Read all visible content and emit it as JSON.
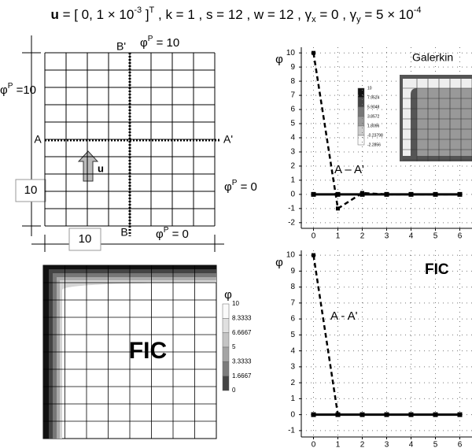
{
  "title": [
    "u",
    " = [ 0, 1 × 10",
    "-3",
    " ]",
    "T",
    " , k = 1 , s = 12 , w = 12 , γ",
    "x",
    " = 0 , γ",
    "y",
    " = 5 × 10",
    "-4"
  ],
  "mesh": {
    "top_label": [
      "φ",
      "P",
      " = 10"
    ],
    "left_label": [
      "φ",
      "P",
      " =10"
    ],
    "right_label": [
      "φ",
      "P",
      " = 0"
    ],
    "bottom_label": [
      "φ",
      "P",
      " = 0"
    ],
    "section_a": "A",
    "section_a_end": "A'",
    "section_b_end": "B'",
    "section_b": "B",
    "height_box": "10",
    "width_box": "10",
    "arrow_label": "u"
  },
  "fic_contour": {
    "label": "FIC",
    "legend_title": "φ",
    "legend_ticks": [
      "10",
      "8.3333",
      "6.6667",
      "5",
      "3.3333",
      "1.6667",
      "0"
    ]
  },
  "galerkin_inset": {
    "legend_ticks": [
      "10",
      "7.9524",
      "5.9048",
      "3.8572",
      "1.8096",
      "-0.23798",
      "-2.2856"
    ]
  },
  "chart_data": [
    {
      "type": "line",
      "label": "Galerkin",
      "annotation": "A – A'",
      "ylabel": "φ",
      "x": [
        0,
        1,
        2,
        3,
        4,
        5,
        6
      ],
      "series": [
        {
          "color": "#000000",
          "dash": true,
          "values": [
            10,
            -1,
            0.1,
            0,
            0,
            0,
            0
          ]
        },
        {
          "color": "#000000",
          "marker": "square",
          "values": [
            0,
            0,
            0,
            0,
            0,
            0,
            0
          ]
        }
      ],
      "xlim": [
        -0.5,
        6.5
      ],
      "ylim": [
        -2.4,
        10.4
      ],
      "xticks": [
        0,
        1,
        2,
        3,
        4,
        5,
        6
      ],
      "yticks": [
        -2,
        -1,
        0,
        1,
        2,
        3,
        4,
        5,
        6,
        7,
        8,
        9,
        10
      ],
      "grid": true
    },
    {
      "type": "line",
      "label": "FIC",
      "annotation": "A - A'",
      "ylabel": "φ",
      "x": [
        0,
        1,
        2,
        3,
        4,
        5,
        6
      ],
      "series": [
        {
          "color": "#000000",
          "dash": true,
          "values": [
            10,
            0,
            null,
            null,
            null,
            null,
            null
          ]
        },
        {
          "color": "#000000",
          "marker": "square",
          "values": [
            0,
            0,
            0,
            0,
            0,
            0,
            0
          ]
        }
      ],
      "xlim": [
        -0.5,
        6.5
      ],
      "ylim": [
        -1.4,
        10.3
      ],
      "xticks": [
        0,
        1,
        2,
        3,
        4,
        5,
        6
      ],
      "yticks": [
        -1,
        0,
        1,
        2,
        3,
        4,
        5,
        6,
        7,
        8,
        9,
        10
      ],
      "grid": true
    }
  ]
}
